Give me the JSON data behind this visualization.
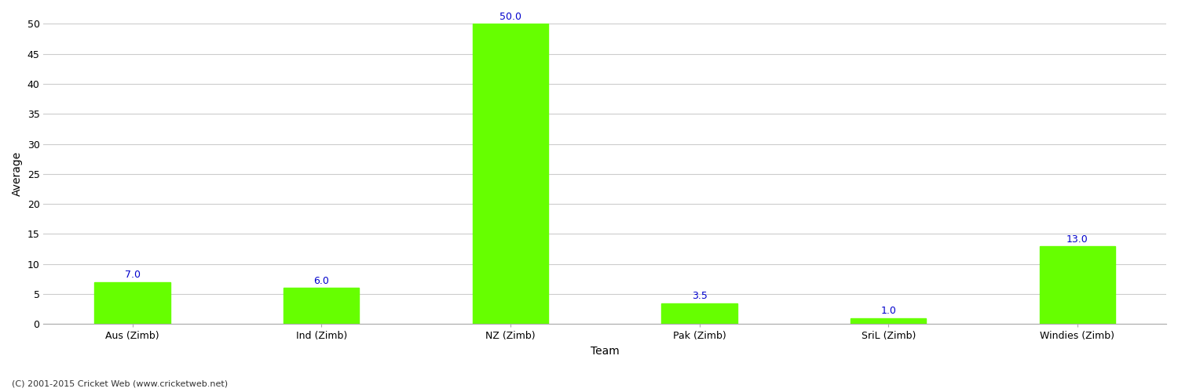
{
  "categories": [
    "Aus (Zimb)",
    "Ind (Zimb)",
    "NZ (Zimb)",
    "Pak (Zimb)",
    "SriL (Zimb)",
    "Windies (Zimb)"
  ],
  "values": [
    7.0,
    6.0,
    50.0,
    3.5,
    1.0,
    13.0
  ],
  "bar_color": "#66ff00",
  "bar_edge_color": "#66ff00",
  "value_color": "#0000cc",
  "xlabel": "Team",
  "ylabel": "Average",
  "ylim": [
    0,
    50
  ],
  "yticks": [
    0,
    5,
    10,
    15,
    20,
    25,
    30,
    35,
    40,
    45,
    50
  ],
  "grid_color": "#cccccc",
  "background_color": "#ffffff",
  "footer_text": "(C) 2001-2015 Cricket Web (www.cricketweb.net)",
  "value_fontsize": 9,
  "label_fontsize": 10,
  "axis_tick_fontsize": 9
}
